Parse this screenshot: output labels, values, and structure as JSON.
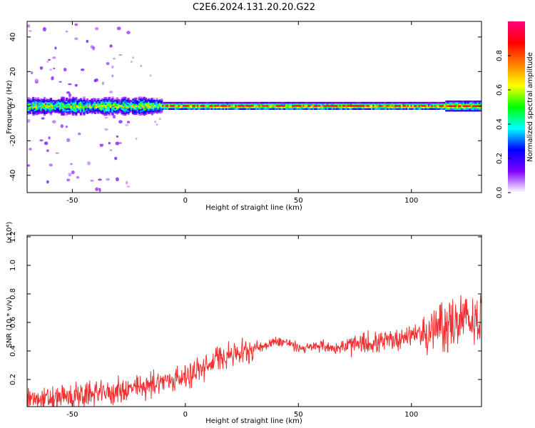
{
  "title": "C2E6.2024.131.20.20.G22",
  "chart_data": [
    {
      "type": "heatmap",
      "xlabel": "Height of straight line (km)",
      "ylabel": "Frequency (Hz)",
      "xlim": [
        -70,
        131
      ],
      "ylim": [
        -50,
        49
      ],
      "xticks": [
        -50,
        0,
        50,
        100
      ],
      "yticks": [
        -40,
        -20,
        0,
        20,
        40
      ],
      "signal_band_center_hz": 0,
      "colorbar": {
        "label": "Normalized spectral amplitude",
        "range": [
          0,
          1
        ],
        "ticks": [
          "0.0",
          "0.2",
          "0.4",
          "0.6",
          "0.8"
        ],
        "colors": [
          "#ffffff",
          "#7f00ff",
          "#0000ff",
          "#00ffff",
          "#00ff00",
          "#ffff00",
          "#ff7f00",
          "#ff0000",
          "#ff0080"
        ]
      }
    },
    {
      "type": "line",
      "xlabel": "Height of straight line (km)",
      "ylabel": "SNR (10 * v/v)",
      "y_multiplier": "(x10⁴)",
      "xlim": [
        -70,
        131
      ],
      "ylim": [
        0.01,
        1.21
      ],
      "xticks": [
        -50,
        0,
        50,
        100
      ],
      "yticks": [
        "0.2",
        "0.4",
        "0.6",
        "0.8",
        "1.0",
        "1.2"
      ],
      "series_color": "#f03030",
      "x": [
        -70,
        -60,
        -50,
        -40,
        -30,
        -20,
        -10,
        0,
        5,
        10,
        15,
        20,
        25,
        30,
        35,
        40,
        45,
        50,
        55,
        60,
        65,
        70,
        75,
        80,
        85,
        90,
        95,
        100,
        105,
        110,
        115,
        120,
        125,
        131
      ],
      "y": [
        0.06,
        0.06,
        0.08,
        0.1,
        0.12,
        0.14,
        0.19,
        0.22,
        0.26,
        0.29,
        0.36,
        0.38,
        0.39,
        0.42,
        0.44,
        0.47,
        0.46,
        0.42,
        0.42,
        0.44,
        0.42,
        0.43,
        0.44,
        0.45,
        0.46,
        0.47,
        0.49,
        0.52,
        0.52,
        0.54,
        0.58,
        0.6,
        0.62,
        0.62
      ]
    }
  ]
}
